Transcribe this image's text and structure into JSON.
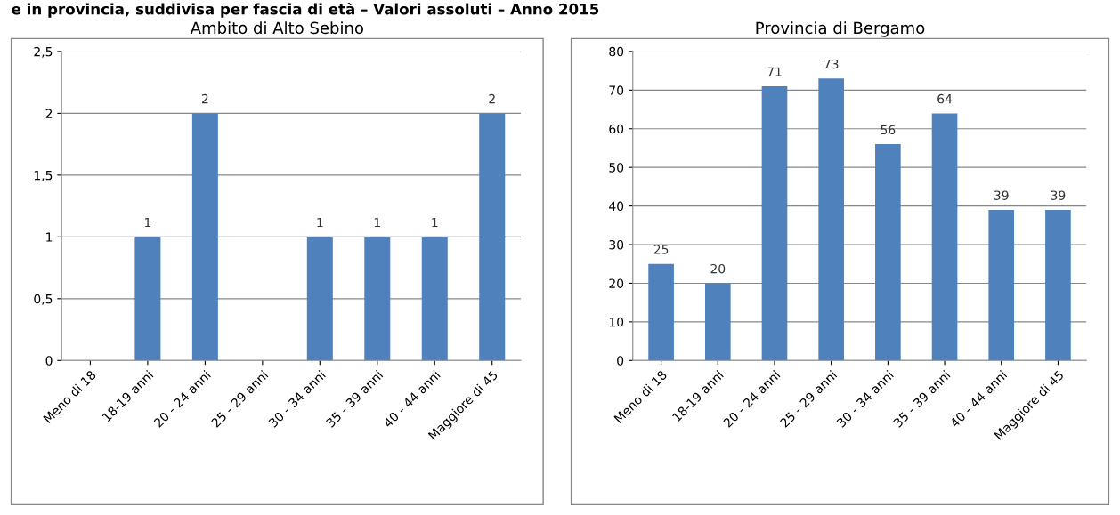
{
  "chart_data": [
    {
      "type": "bar",
      "title": "Ambito di Alto Sebino",
      "annotations": [
        "e in provincia, suddivisa per fascia di età – Valori assoluti – Anno 2015"
      ],
      "categories": [
        "Meno di 18",
        "18-19 anni",
        "20 - 24 anni",
        "25 - 29 anni",
        "30 - 34 anni",
        "35 - 39 anni",
        "40 - 44 anni",
        "Maggiore di 45"
      ],
      "values": [
        null,
        1,
        2,
        null,
        1,
        1,
        1,
        2
      ],
      "color": "#4f81bd",
      "data_labels": true,
      "grid": "y",
      "ylim": [
        0,
        2.5
      ],
      "yticks": [
        0,
        {
          "value": 0.5,
          "label": "0,5"
        },
        1,
        {
          "value": 1.5,
          "label": "1,5"
        },
        2,
        {
          "value": 2.5,
          "label": "2,5"
        }
      ]
    },
    {
      "type": "bar",
      "title": "Provincia di Bergamo",
      "categories": [
        "Meno di 18",
        "18-19 anni",
        "20 - 24 anni",
        "25 - 29 anni",
        "30 - 34 anni",
        "35 - 39 anni",
        "40 - 44 anni",
        "Maggiore di 45"
      ],
      "values": [
        25,
        20,
        71,
        73,
        56,
        64,
        39,
        39
      ],
      "color": "#4f81bd",
      "data_labels": true,
      "grid": "y",
      "ylim": [
        0,
        80
      ],
      "yticks": [
        0,
        10,
        20,
        30,
        40,
        50,
        60,
        70,
        80
      ]
    }
  ]
}
